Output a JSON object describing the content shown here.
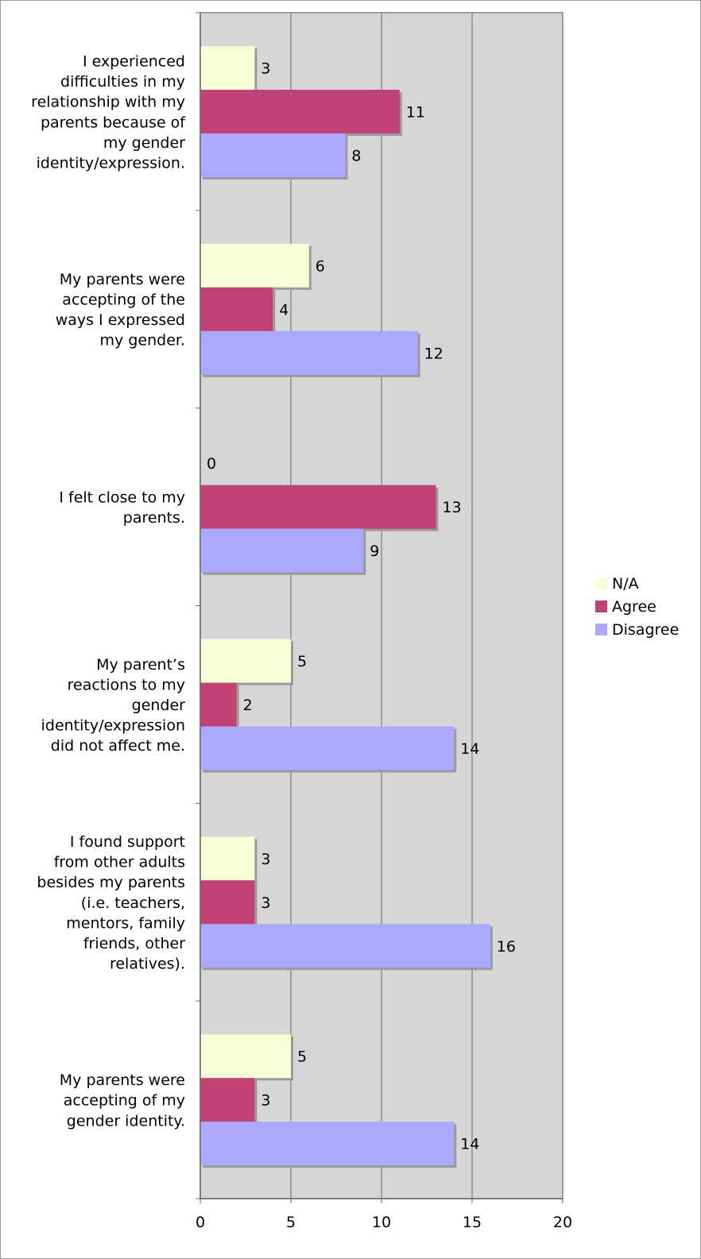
{
  "chart_data": {
    "type": "bar",
    "orientation": "horizontal",
    "categories": [
      "I experienced difficulties in my relationship with my parents because of my gender identity/expression.",
      "My parents were accepting of the ways I expressed my gender.",
      "I felt close to my parents.",
      "My parent’s reactions to my gender identity/expression did not affect me.",
      "I found support from other adults besides my parents (i.e. teachers, mentors, family friends, other relatives).",
      "My parents were accepting of my gender identity."
    ],
    "category_lines": [
      [
        "I experienced",
        "difficulties in my",
        "relationship with my",
        "parents because of",
        "my gender",
        "identity/expression."
      ],
      [
        "My parents were",
        "accepting of the",
        "ways I expressed",
        "my gender."
      ],
      [
        "I felt close to my",
        "parents."
      ],
      [
        "My parent’s",
        "reactions to my",
        "gender",
        "identity/expression",
        "did not affect me."
      ],
      [
        "I found support",
        "from other adults",
        "besides my parents",
        "(i.e. teachers,",
        "mentors, family",
        "friends, other",
        "relatives)."
      ],
      [
        "My parents were",
        "accepting of my",
        "gender identity."
      ]
    ],
    "series": [
      {
        "name": "N/A",
        "color": "#f7fdd5",
        "values": [
          3,
          6,
          0,
          5,
          3,
          5
        ]
      },
      {
        "name": "Agree",
        "color": "#c14277",
        "values": [
          11,
          4,
          13,
          2,
          3,
          3
        ]
      },
      {
        "name": "Disagree",
        "color": "#aaa8ff",
        "values": [
          8,
          12,
          9,
          14,
          16,
          14
        ]
      }
    ],
    "xlim": [
      0,
      20
    ],
    "xticks": [
      0,
      5,
      10,
      15,
      20
    ],
    "title": "",
    "xlabel": "",
    "ylabel": "",
    "grid": true,
    "legend_position": "right",
    "plot_background": "#d6d6d6"
  }
}
